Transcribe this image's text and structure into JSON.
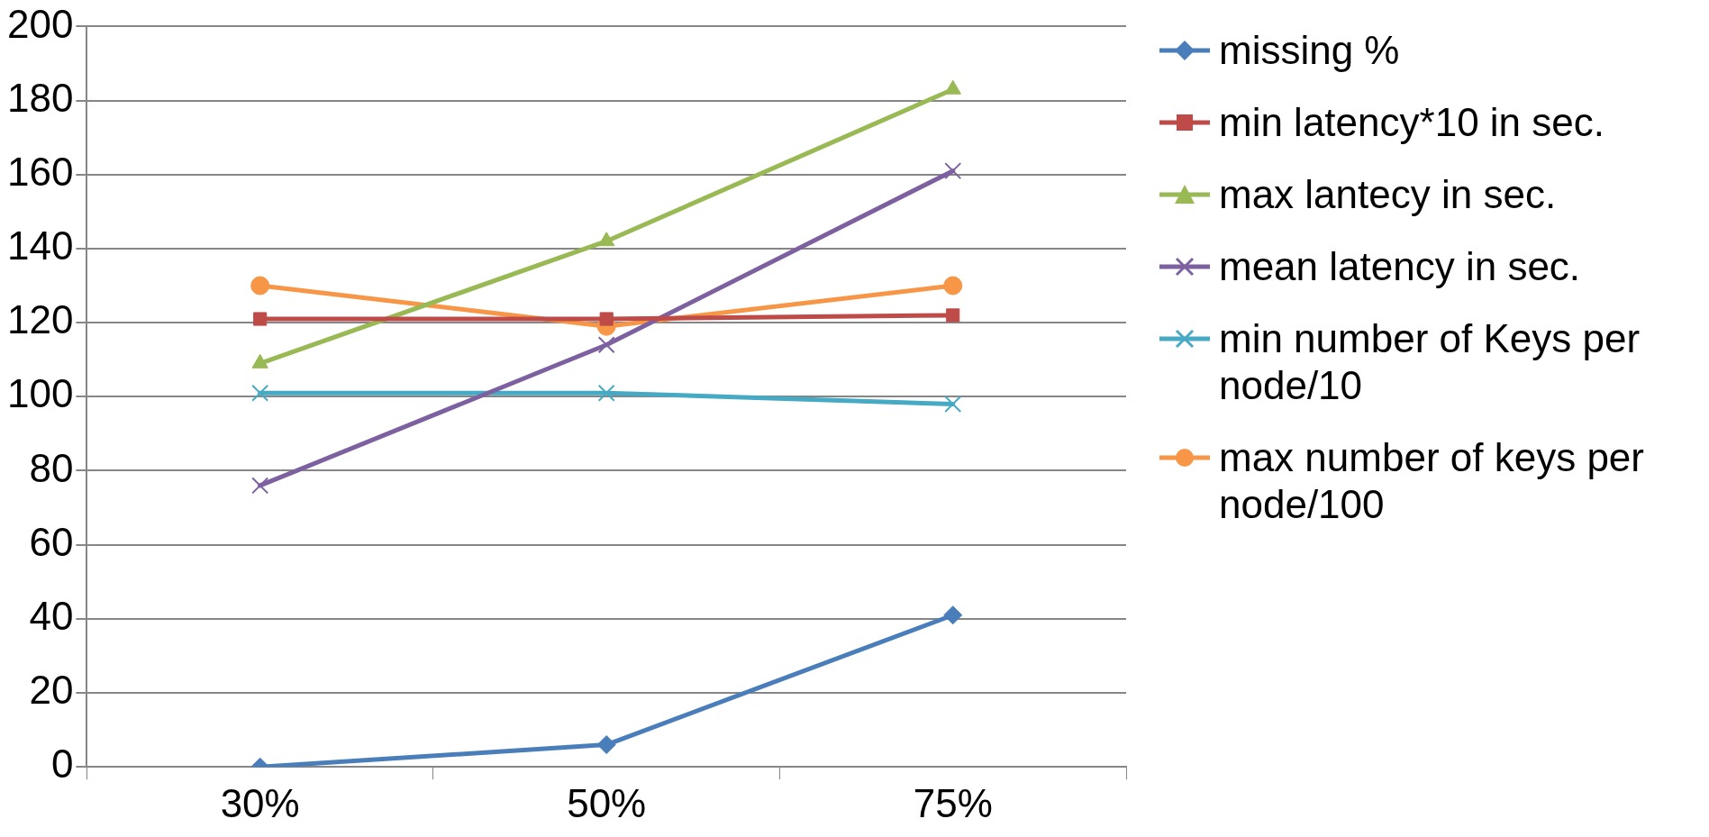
{
  "chart_data": {
    "type": "line",
    "categories": [
      "30%",
      "50%",
      "75%"
    ],
    "ylim": [
      0,
      200
    ],
    "yticks": [
      0,
      20,
      40,
      60,
      80,
      100,
      120,
      140,
      160,
      180,
      200
    ],
    "grid": "y",
    "legend": "right",
    "series": [
      {
        "name": "missing %",
        "color": "#4a7ebb",
        "marker": "diamond",
        "values": [
          0,
          6,
          41
        ]
      },
      {
        "name": "min latency*10 in sec.",
        "color": "#be4b48",
        "marker": "square",
        "values": [
          121,
          121,
          122
        ]
      },
      {
        "name": "max lantecy in sec.",
        "color": "#98b954",
        "marker": "triangle",
        "values": [
          109,
          142,
          183
        ]
      },
      {
        "name": "mean latency in sec.",
        "color": "#7d60a0",
        "marker": "cross",
        "values": [
          76,
          114,
          161
        ]
      },
      {
        "name": "min number of Keys per node/10",
        "color": "#46aac5",
        "marker": "cross",
        "values": [
          101,
          101,
          98
        ]
      },
      {
        "name": "max number of keys per node/100",
        "color": "#f79646",
        "marker": "circle",
        "values": [
          130,
          119,
          130
        ]
      }
    ]
  }
}
